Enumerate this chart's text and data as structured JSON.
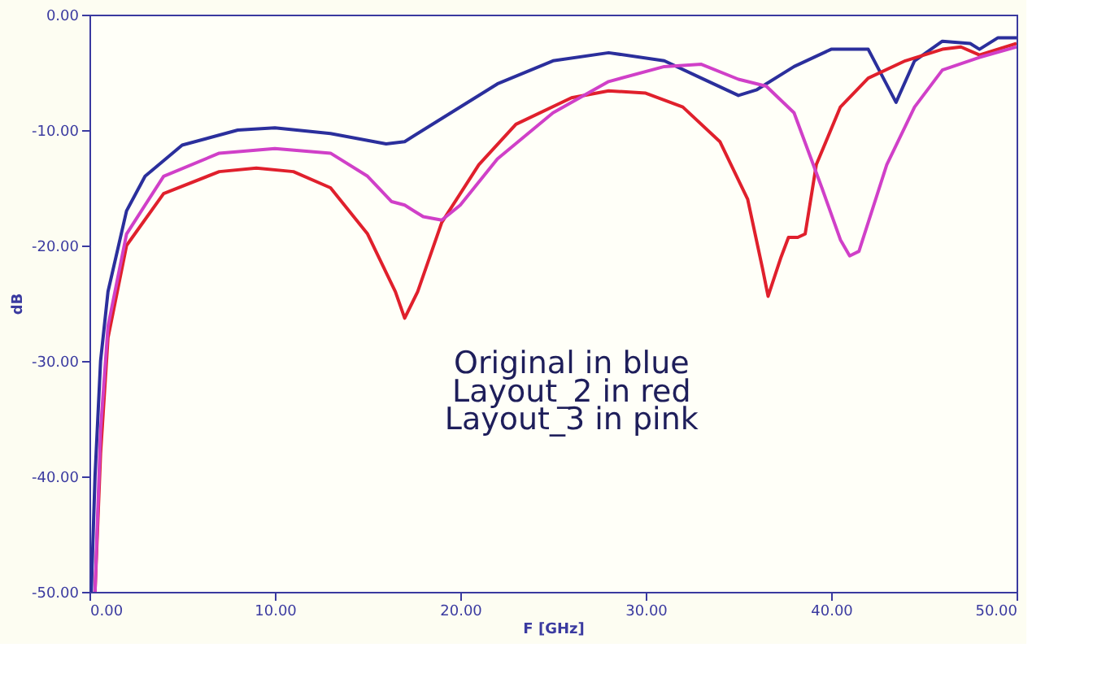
{
  "chart_data": {
    "type": "line",
    "xlabel": "F [GHz]",
    "ylabel": "dB",
    "xlim": [
      0,
      50
    ],
    "ylim": [
      -50,
      0
    ],
    "xticks": [
      {
        "value": 0,
        "label": "0.00"
      },
      {
        "value": 10,
        "label": "10.00"
      },
      {
        "value": 20,
        "label": "20.00"
      },
      {
        "value": 30,
        "label": "30.00"
      },
      {
        "value": 40,
        "label": "40.00"
      },
      {
        "value": 50,
        "label": "50.00"
      }
    ],
    "yticks": [
      {
        "value": 0,
        "label": "0.00"
      },
      {
        "value": -10,
        "label": "-10.00"
      },
      {
        "value": -20,
        "label": "-20.00"
      },
      {
        "value": -30,
        "label": "-30.00"
      },
      {
        "value": -40,
        "label": "-40.00"
      },
      {
        "value": -50,
        "label": "-50.00"
      }
    ],
    "grid": false,
    "legend": false,
    "marker": "none",
    "line_style": "solid",
    "annotations": [
      "Original in blue",
      "Layout_2 in red",
      "Layout_3 in pink"
    ],
    "series": [
      {
        "color": "#2b2f9c",
        "x": [
          0.1,
          0.3,
          0.6,
          1,
          2,
          3,
          5,
          8,
          10,
          13,
          16,
          17,
          19,
          22,
          25,
          28,
          31,
          33,
          35,
          36,
          38,
          40,
          42,
          43.5,
          44.5,
          46,
          47.5,
          48,
          49,
          50
        ],
        "values": [
          -50,
          -40,
          -30,
          -24,
          -17,
          -14,
          -11.3,
          -10,
          -9.8,
          -10.3,
          -11.2,
          -11,
          -9,
          -6,
          -4,
          -3.3,
          -4,
          -5.5,
          -7,
          -6.5,
          -4.5,
          -3,
          -3,
          -7.6,
          -4,
          -2.3,
          -2.5,
          -3,
          -2,
          -2
        ]
      },
      {
        "color": "#e0202c",
        "x": [
          0.3,
          0.6,
          1,
          2,
          4,
          7,
          9,
          11,
          13,
          15,
          16.5,
          17,
          17.7,
          19,
          21,
          23,
          26,
          28,
          30,
          32,
          34,
          35.5,
          36.3,
          36.6,
          37.3,
          37.7,
          38.2,
          38.6,
          39.2,
          40.5,
          42,
          44,
          46,
          47,
          48,
          50
        ],
        "values": [
          -50,
          -38,
          -28,
          -20,
          -15.5,
          -13.6,
          -13.3,
          -13.6,
          -15,
          -19,
          -24,
          -26.3,
          -24,
          -18,
          -13,
          -9.5,
          -7.2,
          -6.6,
          -6.8,
          -8,
          -11,
          -16,
          -22,
          -24.4,
          -21,
          -19.3,
          -19.3,
          -19,
          -13,
          -8,
          -5.5,
          -4,
          -3,
          -2.8,
          -3.5,
          -2.5
        ]
      },
      {
        "color": "#d040c8",
        "x": [
          0.3,
          0.6,
          1,
          2,
          4,
          7,
          10,
          13,
          15,
          16.3,
          17,
          18,
          19,
          20,
          22,
          25,
          28,
          31,
          33,
          35,
          36.5,
          38,
          39.5,
          40.5,
          41,
          41.5,
          43,
          44.5,
          46,
          48,
          50
        ],
        "values": [
          -50,
          -36,
          -27,
          -19,
          -14,
          -12,
          -11.6,
          -12,
          -14,
          -16.2,
          -16.5,
          -17.5,
          -17.8,
          -16.5,
          -12.5,
          -8.5,
          -5.8,
          -4.5,
          -4.3,
          -5.6,
          -6.2,
          -8.5,
          -15,
          -19.5,
          -20.9,
          -20.5,
          -13,
          -8,
          -4.8,
          -3.7,
          -2.8
        ]
      }
    ]
  }
}
